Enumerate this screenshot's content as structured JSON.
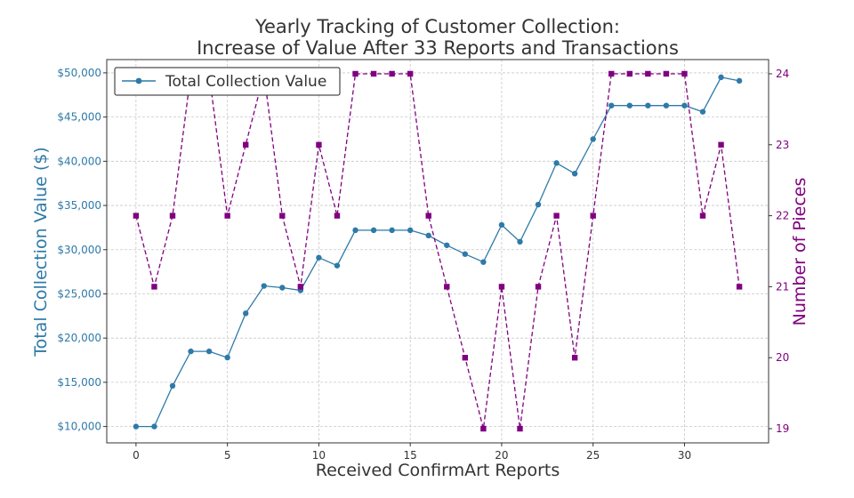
{
  "chart_data": {
    "type": "line",
    "title_line1": "Yearly Tracking of Customer Collection:",
    "title_line2": "Increase of Value After 33 Reports and Transactions",
    "xlabel": "Received ConfirmArt Reports",
    "ylabel_left": "Total Collection Value ($)",
    "ylabel_right": "Number of Pieces",
    "xlim": [
      -1.6,
      34.6
    ],
    "ylim_left": [
      8150,
      51500
    ],
    "ylim_right": [
      18.8,
      24.2
    ],
    "x_ticks": [
      0,
      5,
      10,
      15,
      20,
      25,
      30
    ],
    "y_left_ticks": [
      {
        "value": 10000,
        "label": "$10,000"
      },
      {
        "value": 15000,
        "label": "$15,000"
      },
      {
        "value": 20000,
        "label": "$20,000"
      },
      {
        "value": 25000,
        "label": "$25,000"
      },
      {
        "value": 30000,
        "label": "$30,000"
      },
      {
        "value": 35000,
        "label": "$35,000"
      },
      {
        "value": 40000,
        "label": "$40,000"
      },
      {
        "value": 45000,
        "label": "$45,000"
      },
      {
        "value": 50000,
        "label": "$50,000"
      }
    ],
    "y_right_ticks": [
      19,
      20,
      21,
      22,
      23,
      24
    ],
    "grid": true,
    "legend_position": "top-left",
    "x": [
      0,
      1,
      2,
      3,
      4,
      5,
      6,
      7,
      8,
      9,
      10,
      11,
      12,
      13,
      14,
      15,
      16,
      17,
      18,
      19,
      20,
      21,
      22,
      23,
      24,
      25,
      26,
      27,
      28,
      29,
      30,
      31,
      32,
      33
    ],
    "series": [
      {
        "name": "Total Collection Value",
        "axis": "left",
        "style": "solid-circle",
        "color": "#2e7aa8",
        "values": [
          10000,
          10000,
          14600,
          18500,
          18500,
          17800,
          22800,
          25900,
          25700,
          25400,
          29100,
          28200,
          32200,
          32200,
          32200,
          32200,
          31600,
          30500,
          29500,
          28600,
          32800,
          30900,
          35100,
          39800,
          38600,
          42500,
          46300,
          46300,
          46300,
          46300,
          46300,
          45600,
          49500,
          49100
        ]
      },
      {
        "name": "Number of Pieces",
        "axis": "right",
        "style": "dashed-square",
        "color": "#800080",
        "values": [
          22,
          21,
          22,
          24,
          24,
          22,
          23,
          24,
          22,
          21,
          23,
          22,
          24,
          24,
          24,
          24,
          22,
          21,
          20,
          19,
          21,
          19,
          21,
          22,
          20,
          22,
          24,
          24,
          24,
          24,
          24,
          22,
          23,
          21
        ]
      }
    ],
    "legend": [
      {
        "label": "Total Collection Value",
        "color": "#2e7aa8"
      }
    ]
  }
}
